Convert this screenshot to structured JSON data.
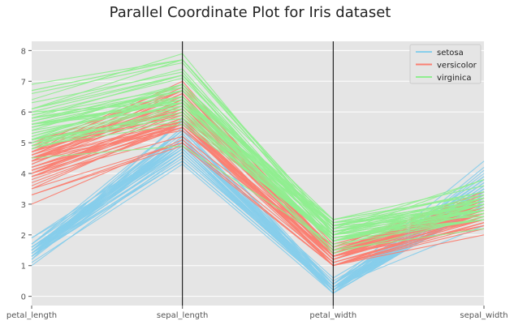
{
  "chart_data": {
    "type": "parallel_coordinates",
    "title": "Parallel Coordinate Plot for Iris dataset",
    "xlabel": "",
    "ylabel": "",
    "axes": [
      "petal_length",
      "sepal_length",
      "petal_width",
      "sepal_width"
    ],
    "yticks": [
      0,
      1,
      2,
      3,
      4,
      5,
      6,
      7,
      8
    ],
    "ylim": [
      -0.3,
      8.3
    ],
    "grid": true,
    "legend_position": "top-right",
    "series": [
      {
        "name": "setosa",
        "color": "#87ceeb",
        "records": [
          [
            1.4,
            5.1,
            0.2,
            3.5
          ],
          [
            1.4,
            4.9,
            0.2,
            3.0
          ],
          [
            1.3,
            4.7,
            0.2,
            3.2
          ],
          [
            1.5,
            4.6,
            0.2,
            3.1
          ],
          [
            1.4,
            5.0,
            0.2,
            3.6
          ],
          [
            1.7,
            5.4,
            0.4,
            3.9
          ],
          [
            1.4,
            4.6,
            0.3,
            3.4
          ],
          [
            1.5,
            5.0,
            0.2,
            3.4
          ],
          [
            1.4,
            4.4,
            0.2,
            2.9
          ],
          [
            1.5,
            4.9,
            0.1,
            3.1
          ],
          [
            1.5,
            5.4,
            0.2,
            3.7
          ],
          [
            1.6,
            4.8,
            0.2,
            3.4
          ],
          [
            1.4,
            4.8,
            0.1,
            3.0
          ],
          [
            1.1,
            4.3,
            0.1,
            3.0
          ],
          [
            1.2,
            5.8,
            0.2,
            4.0
          ],
          [
            1.5,
            5.7,
            0.4,
            4.4
          ],
          [
            1.3,
            5.4,
            0.4,
            3.9
          ],
          [
            1.4,
            5.1,
            0.3,
            3.5
          ],
          [
            1.7,
            5.7,
            0.3,
            3.8
          ],
          [
            1.5,
            5.1,
            0.3,
            3.8
          ],
          [
            1.7,
            5.4,
            0.2,
            3.4
          ],
          [
            1.5,
            5.1,
            0.4,
            3.7
          ],
          [
            1.0,
            4.6,
            0.2,
            3.6
          ],
          [
            1.7,
            5.1,
            0.5,
            3.3
          ],
          [
            1.9,
            4.8,
            0.2,
            3.4
          ],
          [
            1.6,
            5.0,
            0.2,
            3.0
          ],
          [
            1.6,
            5.0,
            0.4,
            3.4
          ],
          [
            1.5,
            5.2,
            0.2,
            3.5
          ],
          [
            1.4,
            5.2,
            0.2,
            3.4
          ],
          [
            1.6,
            4.7,
            0.2,
            3.2
          ],
          [
            1.6,
            4.8,
            0.2,
            3.1
          ],
          [
            1.5,
            5.4,
            0.4,
            3.4
          ],
          [
            1.5,
            5.2,
            0.1,
            4.1
          ],
          [
            1.4,
            5.5,
            0.2,
            4.2
          ],
          [
            1.5,
            4.9,
            0.2,
            3.1
          ],
          [
            1.2,
            5.0,
            0.2,
            3.2
          ],
          [
            1.3,
            5.5,
            0.2,
            3.5
          ],
          [
            1.4,
            4.9,
            0.1,
            3.6
          ],
          [
            1.3,
            4.4,
            0.2,
            3.0
          ],
          [
            1.5,
            5.1,
            0.2,
            3.4
          ],
          [
            1.3,
            5.0,
            0.3,
            3.5
          ],
          [
            1.3,
            4.5,
            0.3,
            2.3
          ],
          [
            1.3,
            4.4,
            0.2,
            3.2
          ],
          [
            1.6,
            5.0,
            0.6,
            3.5
          ],
          [
            1.9,
            5.1,
            0.4,
            3.8
          ],
          [
            1.4,
            4.8,
            0.3,
            3.0
          ],
          [
            1.6,
            5.1,
            0.2,
            3.8
          ],
          [
            1.4,
            4.6,
            0.2,
            3.2
          ],
          [
            1.5,
            5.3,
            0.2,
            3.7
          ],
          [
            1.4,
            5.0,
            0.2,
            3.3
          ]
        ]
      },
      {
        "name": "versicolor",
        "color": "#fa8072",
        "records": [
          [
            4.7,
            7.0,
            1.4,
            3.2
          ],
          [
            4.5,
            6.4,
            1.5,
            3.2
          ],
          [
            4.9,
            6.9,
            1.5,
            3.1
          ],
          [
            4.0,
            5.5,
            1.3,
            2.3
          ],
          [
            4.6,
            6.5,
            1.5,
            2.8
          ],
          [
            4.5,
            5.7,
            1.3,
            2.8
          ],
          [
            4.7,
            6.3,
            1.6,
            3.3
          ],
          [
            3.3,
            4.9,
            1.0,
            2.4
          ],
          [
            4.6,
            6.6,
            1.3,
            2.9
          ],
          [
            3.9,
            5.2,
            1.4,
            2.7
          ],
          [
            3.5,
            5.0,
            1.0,
            2.0
          ],
          [
            4.2,
            5.9,
            1.5,
            3.0
          ],
          [
            4.0,
            6.0,
            1.0,
            2.2
          ],
          [
            4.7,
            6.1,
            1.4,
            2.9
          ],
          [
            3.6,
            5.6,
            1.3,
            2.9
          ],
          [
            4.4,
            6.7,
            1.4,
            3.1
          ],
          [
            4.5,
            5.6,
            1.5,
            3.0
          ],
          [
            4.1,
            5.8,
            1.0,
            2.7
          ],
          [
            4.5,
            6.2,
            1.5,
            2.2
          ],
          [
            3.9,
            5.6,
            1.1,
            2.5
          ],
          [
            4.8,
            5.9,
            1.8,
            3.2
          ],
          [
            4.0,
            6.1,
            1.3,
            2.8
          ],
          [
            4.9,
            6.3,
            1.5,
            2.5
          ],
          [
            4.7,
            6.1,
            1.2,
            2.8
          ],
          [
            4.3,
            6.4,
            1.3,
            2.9
          ],
          [
            4.4,
            6.6,
            1.4,
            3.0
          ],
          [
            4.8,
            6.8,
            1.4,
            2.8
          ],
          [
            5.0,
            6.7,
            1.7,
            3.0
          ],
          [
            4.5,
            6.0,
            1.5,
            2.9
          ],
          [
            3.5,
            5.7,
            1.0,
            2.6
          ],
          [
            3.8,
            5.5,
            1.1,
            2.4
          ],
          [
            3.7,
            5.5,
            1.0,
            2.4
          ],
          [
            3.9,
            5.8,
            1.2,
            2.7
          ],
          [
            5.1,
            6.0,
            1.6,
            2.7
          ],
          [
            4.5,
            5.4,
            1.5,
            3.0
          ],
          [
            4.5,
            6.0,
            1.6,
            3.4
          ],
          [
            4.7,
            6.7,
            1.5,
            3.1
          ],
          [
            4.4,
            6.3,
            1.3,
            2.3
          ],
          [
            4.1,
            5.6,
            1.3,
            3.0
          ],
          [
            4.0,
            5.5,
            1.3,
            2.5
          ],
          [
            4.4,
            5.5,
            1.2,
            2.6
          ],
          [
            4.6,
            6.1,
            1.4,
            3.0
          ],
          [
            4.0,
            5.8,
            1.2,
            2.6
          ],
          [
            3.3,
            5.0,
            1.0,
            2.3
          ],
          [
            4.2,
            5.6,
            1.3,
            2.7
          ],
          [
            4.2,
            5.7,
            1.2,
            3.0
          ],
          [
            4.2,
            5.7,
            1.3,
            2.9
          ],
          [
            4.3,
            6.2,
            1.3,
            2.9
          ],
          [
            3.0,
            5.1,
            1.1,
            2.5
          ],
          [
            4.1,
            5.7,
            1.3,
            2.8
          ]
        ]
      },
      {
        "name": "virginica",
        "color": "#90ee90",
        "records": [
          [
            6.0,
            6.3,
            2.5,
            3.3
          ],
          [
            5.1,
            5.8,
            1.9,
            2.7
          ],
          [
            5.9,
            7.1,
            2.1,
            3.0
          ],
          [
            5.6,
            6.3,
            1.8,
            2.9
          ],
          [
            5.8,
            6.5,
            2.2,
            3.0
          ],
          [
            6.6,
            7.6,
            2.1,
            3.0
          ],
          [
            4.5,
            4.9,
            1.7,
            2.5
          ],
          [
            6.3,
            7.3,
            1.8,
            2.9
          ],
          [
            5.8,
            6.7,
            1.8,
            2.5
          ],
          [
            6.1,
            7.2,
            2.5,
            3.6
          ],
          [
            5.1,
            6.5,
            2.0,
            3.2
          ],
          [
            5.3,
            6.4,
            1.9,
            2.7
          ],
          [
            5.5,
            6.8,
            2.1,
            3.0
          ],
          [
            5.0,
            5.7,
            2.0,
            2.5
          ],
          [
            5.1,
            5.8,
            2.4,
            2.8
          ],
          [
            5.3,
            6.4,
            2.3,
            3.2
          ],
          [
            5.5,
            6.5,
            1.8,
            3.0
          ],
          [
            6.7,
            7.7,
            2.2,
            3.8
          ],
          [
            6.9,
            7.7,
            2.3,
            2.6
          ],
          [
            5.0,
            6.0,
            1.5,
            2.2
          ],
          [
            5.7,
            6.9,
            2.3,
            3.2
          ],
          [
            4.9,
            5.6,
            2.0,
            2.8
          ],
          [
            6.7,
            7.7,
            2.0,
            2.8
          ],
          [
            4.9,
            6.3,
            1.8,
            2.7
          ],
          [
            5.7,
            6.7,
            2.1,
            3.3
          ],
          [
            6.0,
            7.2,
            1.8,
            3.2
          ],
          [
            4.8,
            6.2,
            1.8,
            2.8
          ],
          [
            4.9,
            6.1,
            1.8,
            3.0
          ],
          [
            5.6,
            6.4,
            2.1,
            2.8
          ],
          [
            5.8,
            7.2,
            1.6,
            3.0
          ],
          [
            6.1,
            7.4,
            1.9,
            2.8
          ],
          [
            6.4,
            7.9,
            2.0,
            3.8
          ],
          [
            5.6,
            6.4,
            2.2,
            2.8
          ],
          [
            5.1,
            6.3,
            1.5,
            2.8
          ],
          [
            5.6,
            6.1,
            1.4,
            2.6
          ],
          [
            6.1,
            7.7,
            2.3,
            3.0
          ],
          [
            5.6,
            6.3,
            2.4,
            3.4
          ],
          [
            5.5,
            6.4,
            1.8,
            3.1
          ],
          [
            4.8,
            6.0,
            1.8,
            3.0
          ],
          [
            5.4,
            6.9,
            2.1,
            3.1
          ],
          [
            5.6,
            6.7,
            2.4,
            3.1
          ],
          [
            5.1,
            6.9,
            2.3,
            3.1
          ],
          [
            5.1,
            5.8,
            1.9,
            2.7
          ],
          [
            5.9,
            6.8,
            2.3,
            3.2
          ],
          [
            5.7,
            6.7,
            2.5,
            3.3
          ],
          [
            5.2,
            6.7,
            2.3,
            3.0
          ],
          [
            5.0,
            6.3,
            1.9,
            2.5
          ],
          [
            5.2,
            6.5,
            2.0,
            3.0
          ],
          [
            5.4,
            6.2,
            2.3,
            3.4
          ],
          [
            5.1,
            5.9,
            1.8,
            3.0
          ]
        ]
      }
    ]
  }
}
